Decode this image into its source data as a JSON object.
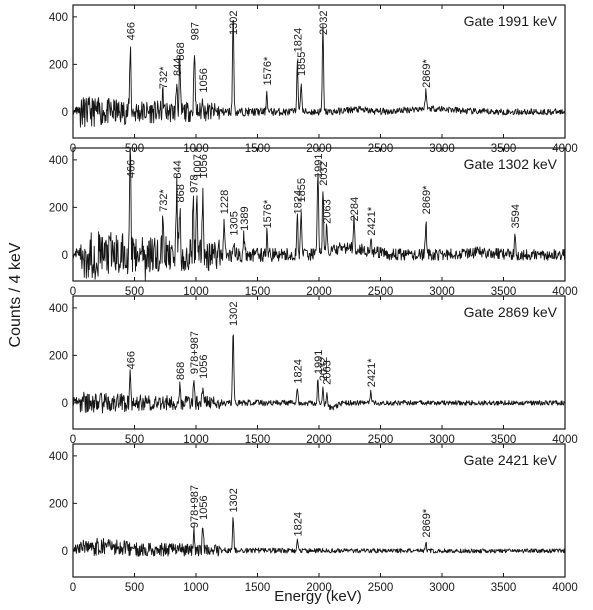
{
  "figure": {
    "ylabel": "Counts / 4 keV",
    "xlabel": "Energy (keV)"
  },
  "chart_data": [
    {
      "type": "line",
      "title": "Gate 1991 keV",
      "xlim": [
        0,
        4000
      ],
      "ylim": [
        -110,
        450
      ],
      "x_ticks": [
        0,
        500,
        1000,
        1500,
        2000,
        2500,
        3000,
        3500,
        4000
      ],
      "y_ticks": [
        0,
        200,
        400
      ],
      "peaks": [
        {
          "label": "466",
          "x": 466,
          "y": 280
        },
        {
          "label": "732*",
          "x": 732,
          "y": 75
        },
        {
          "label": "844",
          "x": 844,
          "y": 130
        },
        {
          "label": "868",
          "x": 868,
          "y": 195
        },
        {
          "label": "987",
          "x": 987,
          "y": 280
        },
        {
          "label": "1056",
          "x": 1056,
          "y": 60
        },
        {
          "label": "1302",
          "x": 1302,
          "y": 420
        },
        {
          "label": "1576*",
          "x": 1576,
          "y": 90
        },
        {
          "label": "1824",
          "x": 1824,
          "y": 230
        },
        {
          "label": "1855",
          "x": 1855,
          "y": 130
        },
        {
          "label": "2032",
          "x": 2032,
          "y": 360
        },
        {
          "label": "2869*",
          "x": 2869,
          "y": 80
        }
      ]
    },
    {
      "type": "line",
      "title": "Gate 1302 keV",
      "xlim": [
        0,
        4000
      ],
      "ylim": [
        -110,
        450
      ],
      "x_ticks": [
        0,
        500,
        1000,
        1500,
        2000,
        2500,
        3000,
        3500,
        4000
      ],
      "y_ticks": [
        0,
        200,
        400
      ],
      "peaks": [
        {
          "label": "466",
          "x": 466,
          "y": 440
        },
        {
          "label": "732*",
          "x": 732,
          "y": 160
        },
        {
          "label": "844",
          "x": 844,
          "y": 300
        },
        {
          "label": "868",
          "x": 868,
          "y": 200
        },
        {
          "label": "978",
          "x": 978,
          "y": 240
        },
        {
          "label": "1007",
          "x": 1007,
          "y": 300
        },
        {
          "label": "1056",
          "x": 1056,
          "y": 300
        },
        {
          "label": "1228",
          "x": 1228,
          "y": 150
        },
        {
          "label": "1305",
          "x": 1305,
          "y": 60
        },
        {
          "label": "1389",
          "x": 1389,
          "y": 80
        },
        {
          "label": "1576*",
          "x": 1576,
          "y": 90
        },
        {
          "label": "1824",
          "x": 1824,
          "y": 150
        },
        {
          "label": "1855",
          "x": 1855,
          "y": 200
        },
        {
          "label": "1991",
          "x": 1991,
          "y": 370
        },
        {
          "label": "2032",
          "x": 2032,
          "y": 270
        },
        {
          "label": "2063",
          "x": 2063,
          "y": 110
        },
        {
          "label": "2284",
          "x": 2284,
          "y": 120
        },
        {
          "label": "2421*",
          "x": 2421,
          "y": 60
        },
        {
          "label": "2869*",
          "x": 2869,
          "y": 150
        },
        {
          "label": "3594",
          "x": 3594,
          "y": 90
        }
      ]
    },
    {
      "type": "line",
      "title": "Gate 2869 keV",
      "xlim": [
        0,
        4000
      ],
      "ylim": [
        -110,
        450
      ],
      "x_ticks": [
        0,
        500,
        1000,
        1500,
        2000,
        2500,
        3000,
        3500,
        4000
      ],
      "y_ticks": [
        0,
        200,
        400
      ],
      "peaks": [
        {
          "label": "466",
          "x": 466,
          "y": 120
        },
        {
          "label": "868",
          "x": 868,
          "y": 75
        },
        {
          "label": "978+987",
          "x": 983,
          "y": 100
        },
        {
          "label": "1056",
          "x": 1056,
          "y": 80
        },
        {
          "label": "1302",
          "x": 1302,
          "y": 310
        },
        {
          "label": "1824",
          "x": 1824,
          "y": 60
        },
        {
          "label": "1991",
          "x": 1991,
          "y": 100
        },
        {
          "label": "2032",
          "x": 2032,
          "y": 70
        },
        {
          "label": "2063",
          "x": 2063,
          "y": 55
        },
        {
          "label": "2421*",
          "x": 2421,
          "y": 45
        }
      ]
    },
    {
      "type": "line",
      "title": "Gate 2421 keV",
      "xlim": [
        0,
        4000
      ],
      "ylim": [
        -110,
        450
      ],
      "x_ticks": [
        0,
        500,
        1000,
        1500,
        2000,
        2500,
        3000,
        3500,
        4000
      ],
      "y_ticks": [
        0,
        200,
        400
      ],
      "peaks": [
        {
          "label": "978+987",
          "x": 983,
          "y": 75
        },
        {
          "label": "1056",
          "x": 1056,
          "y": 110
        },
        {
          "label": "1302",
          "x": 1302,
          "y": 140
        },
        {
          "label": "1824",
          "x": 1824,
          "y": 40
        },
        {
          "label": "2869*",
          "x": 2869,
          "y": 35
        }
      ]
    }
  ]
}
